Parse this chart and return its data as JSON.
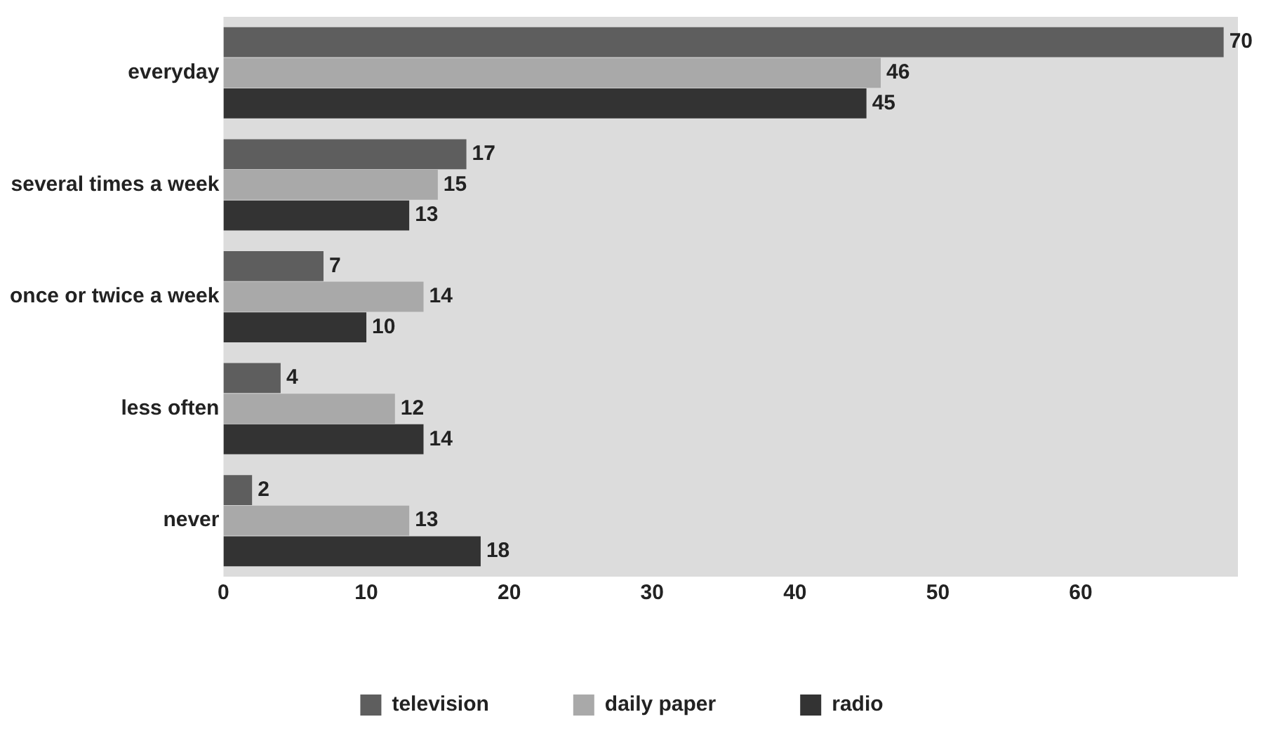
{
  "chart_data": {
    "type": "bar",
    "orientation": "horizontal",
    "categories": [
      "everyday",
      "several times a week",
      "once or twice a week",
      "less often",
      "never"
    ],
    "series": [
      {
        "name": "television",
        "color": "#5e5e5e",
        "values": [
          70,
          17,
          7,
          4,
          2
        ]
      },
      {
        "name": "daily paper",
        "color": "#a9a9a9",
        "values": [
          46,
          15,
          14,
          12,
          13
        ]
      },
      {
        "name": "radio",
        "color": "#333333",
        "values": [
          45,
          13,
          10,
          14,
          18
        ]
      }
    ],
    "xlim": [
      0,
      71
    ],
    "xticks": [
      0,
      10,
      20,
      30,
      40,
      50,
      60
    ],
    "grid": false,
    "legend": "bottom",
    "data_labels": true
  }
}
